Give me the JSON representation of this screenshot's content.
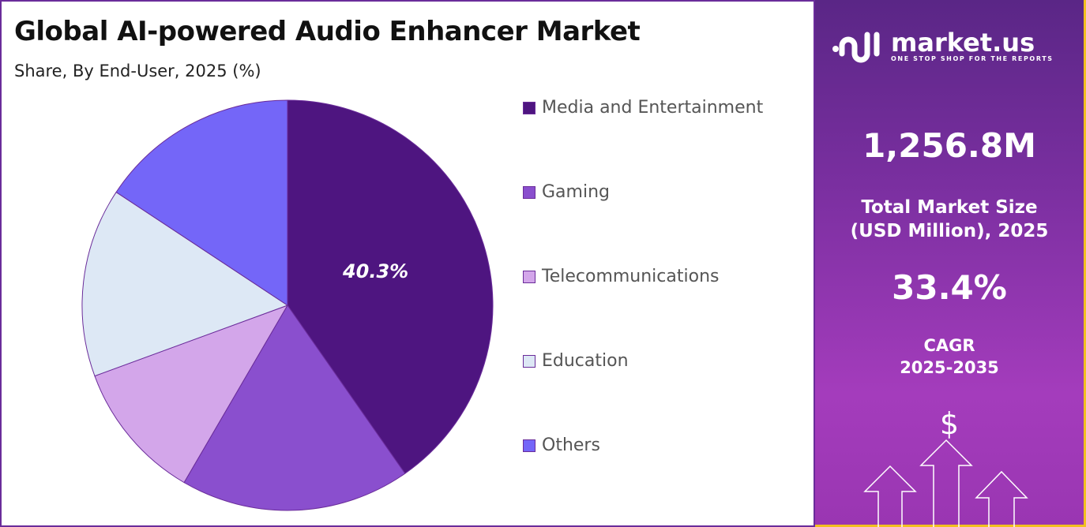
{
  "header": {
    "title": "Global AI-powered Audio Enhancer Market",
    "subtitle": "Share, By End-User, 2025 (%)"
  },
  "chart_data": {
    "type": "pie",
    "categories": [
      "Media and Entertainment",
      "Gaming",
      "Telecommunications",
      "Education",
      "Others"
    ],
    "values": [
      40.3,
      18.1,
      11.0,
      14.9,
      15.7
    ],
    "colors": [
      "#4e1580",
      "#8a4fce",
      "#d3a6ea",
      "#dde8f5",
      "#7466f8"
    ],
    "data_labels": [
      "40.3%",
      "",
      "",
      "",
      ""
    ],
    "legend_position": "right",
    "start_angle": "top, clockwise"
  },
  "panel": {
    "brand": "market.us",
    "tagline": "ONE STOP SHOP FOR THE REPORTS",
    "market_size": "1,256.8M",
    "market_size_label_1": "Total Market Size",
    "market_size_label_2": "(USD Million), 2025",
    "cagr": "33.4%",
    "cagr_label_1": "CAGR",
    "cagr_label_2": "2025-2035",
    "dollar": "$",
    "accent": "#f2c020"
  }
}
